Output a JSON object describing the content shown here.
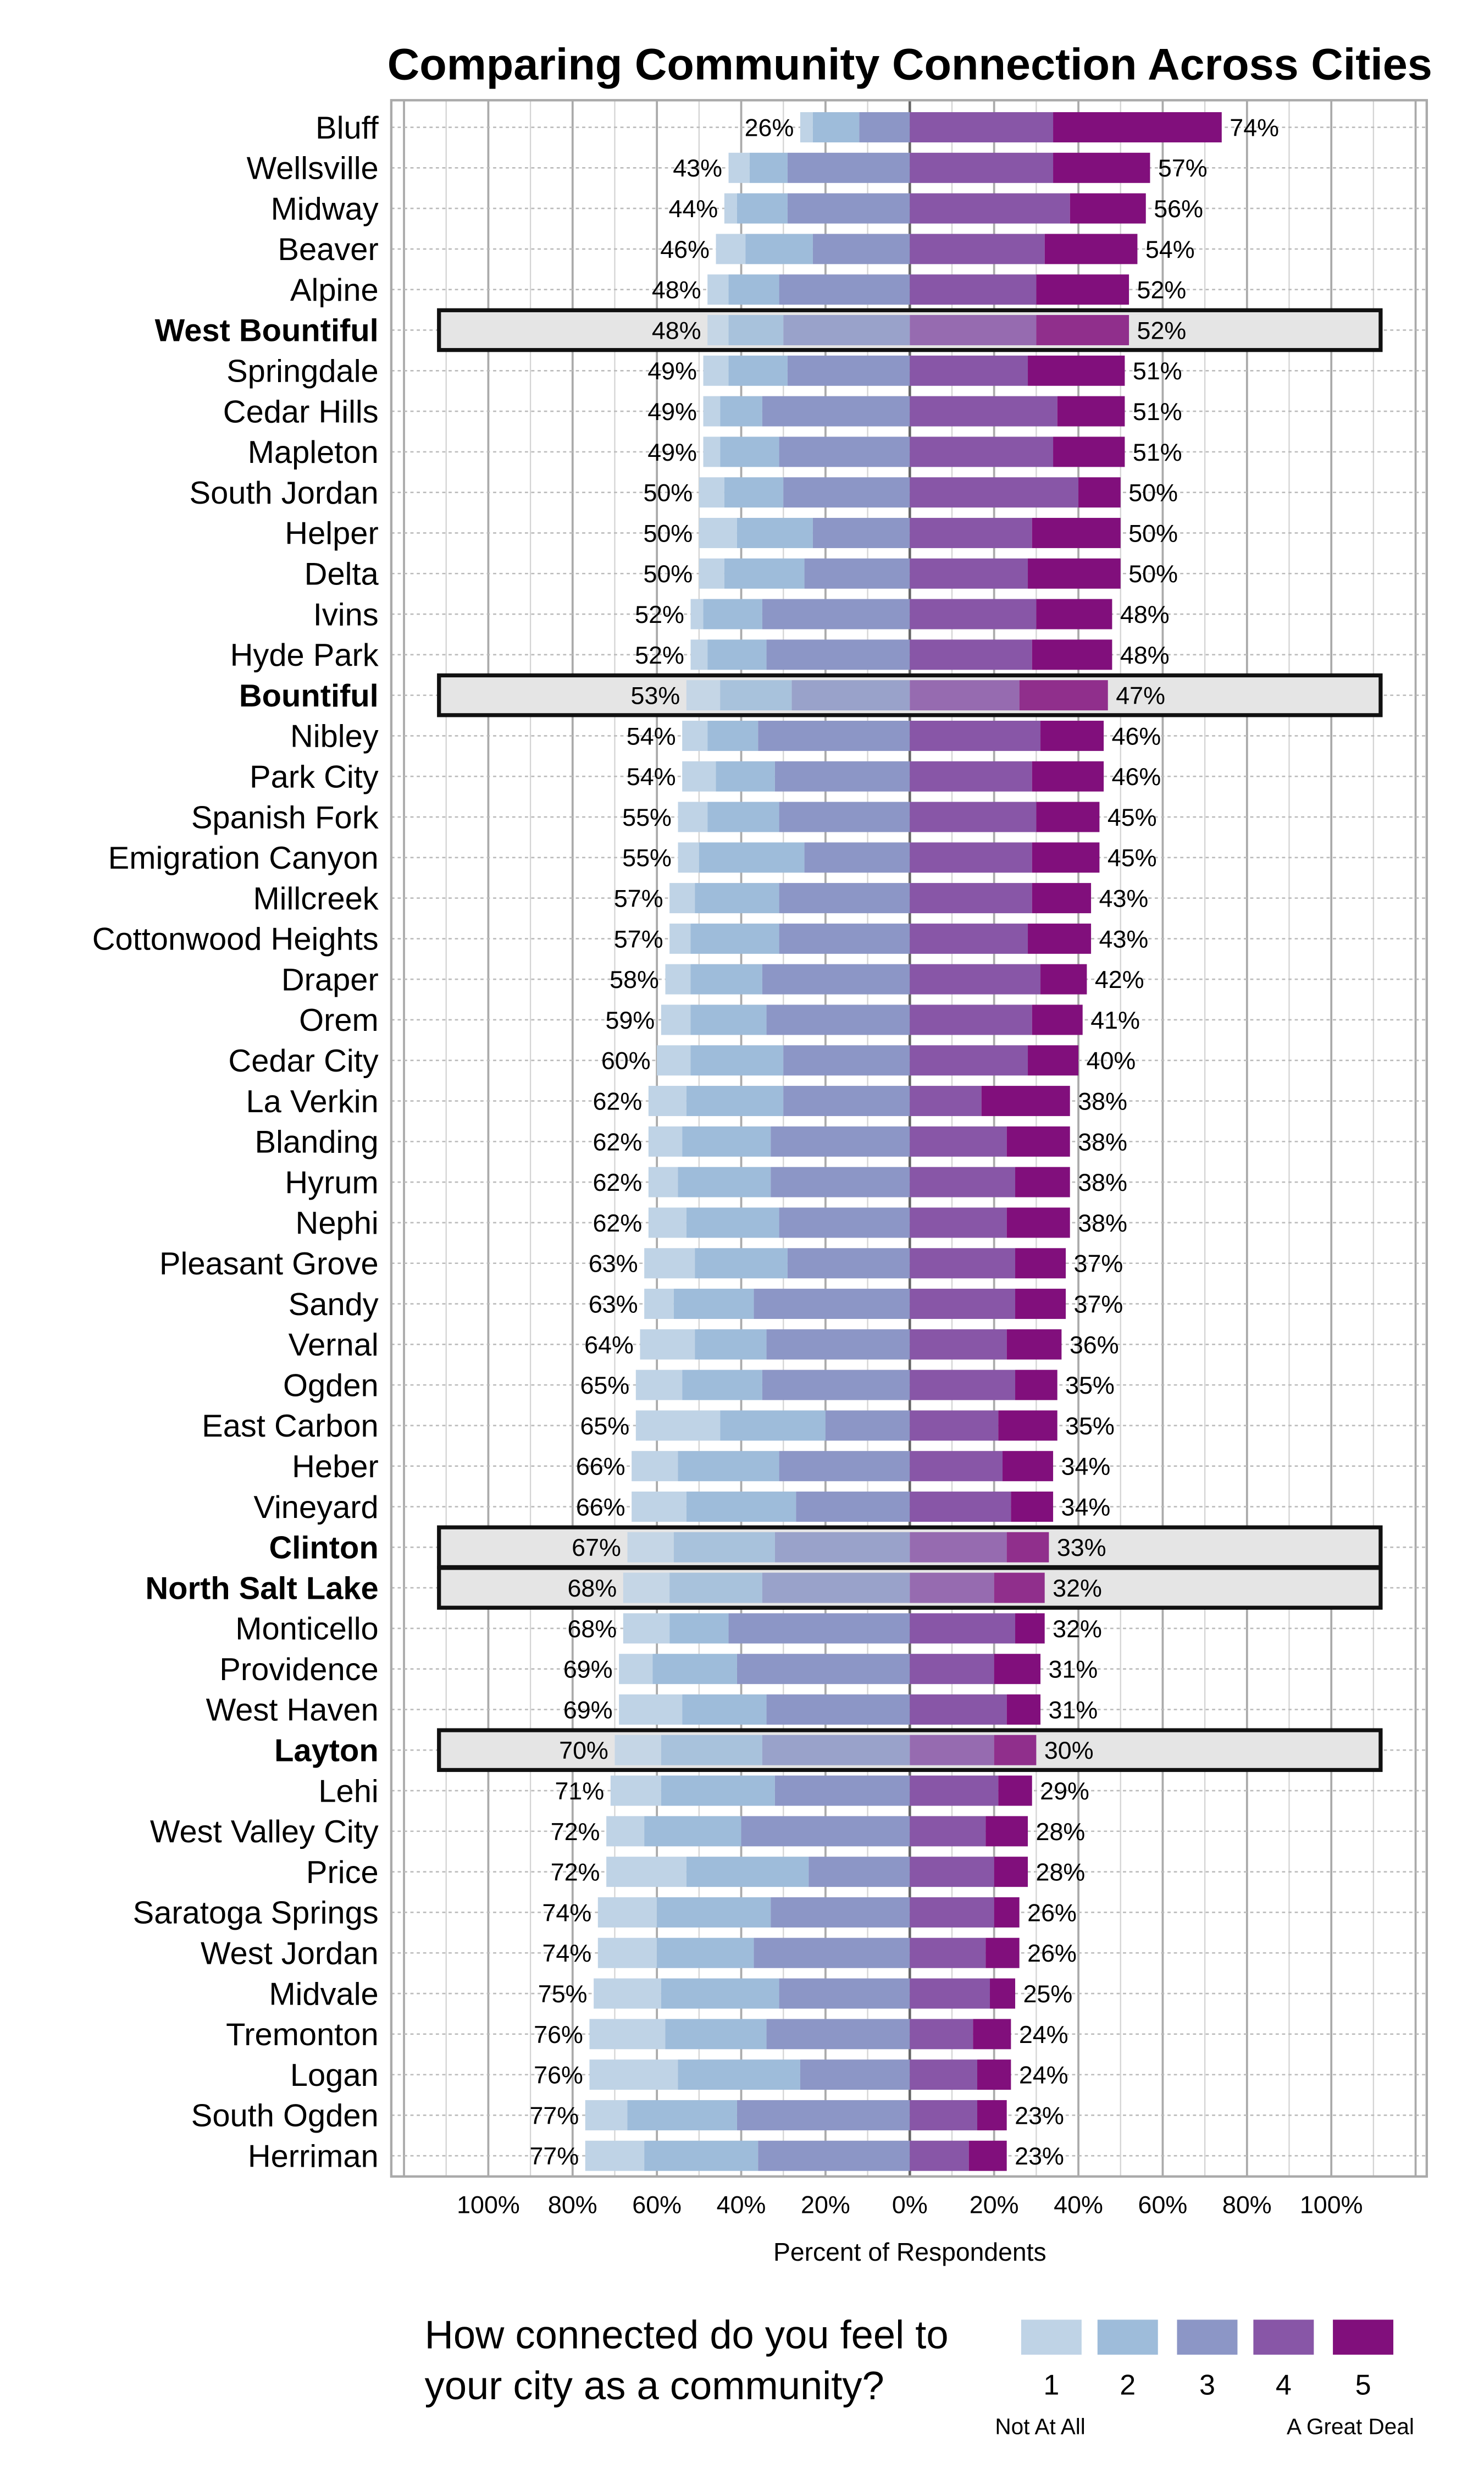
{
  "chart_data": {
    "type": "bar",
    "subtype": "diverging-stacked-horizontal",
    "title": "Comparing Community Connection Across Cities",
    "xlabel": "Percent of Respondents",
    "xlim": [
      -100,
      100
    ],
    "x_tick_labels": [
      "100%",
      "80%",
      "60%",
      "40%",
      "20%",
      "0%",
      "20%",
      "40%",
      "60%",
      "80%",
      "100%"
    ],
    "grid": true,
    "legend": {
      "title_line1": "How connected do you feel to",
      "title_line2": "your city as a community?",
      "placement": "bottom",
      "keys": [
        "1",
        "2",
        "3",
        "4",
        "5"
      ],
      "low_label": "Not At All",
      "high_label": "A Great Deal"
    },
    "colors": [
      "#BFD3E6",
      "#9EBCDA",
      "#8C96C6",
      "#8856A7",
      "#810F7C"
    ],
    "highlight_color": "#E5E5E5",
    "series_names": [
      "1",
      "2",
      "3",
      "4",
      "5"
    ],
    "rows": [
      {
        "city": "Bluff",
        "values": [
          3,
          11,
          12,
          34,
          40
        ],
        "left_label": "26%",
        "right_label": "74%"
      },
      {
        "city": "Wellsville",
        "values": [
          5,
          9,
          29,
          34,
          23
        ],
        "left_label": "43%",
        "right_label": "57%"
      },
      {
        "city": "Midway",
        "values": [
          3,
          12,
          29,
          38,
          18
        ],
        "left_label": "44%",
        "right_label": "56%"
      },
      {
        "city": "Beaver",
        "values": [
          7,
          16,
          23,
          32,
          22
        ],
        "left_label": "46%",
        "right_label": "54%"
      },
      {
        "city": "Alpine",
        "values": [
          5,
          12,
          31,
          30,
          22
        ],
        "left_label": "48%",
        "right_label": "52%"
      },
      {
        "city": "West Bountiful",
        "highlight": true,
        "values": [
          5,
          13,
          30,
          30,
          22
        ],
        "left_label": "48%",
        "right_label": "52%"
      },
      {
        "city": "Springdale",
        "values": [
          6,
          14,
          29,
          28,
          23
        ],
        "left_label": "49%",
        "right_label": "51%"
      },
      {
        "city": "Cedar Hills",
        "values": [
          4,
          10,
          35,
          35,
          16
        ],
        "left_label": "49%",
        "right_label": "51%"
      },
      {
        "city": "Mapleton",
        "values": [
          4,
          14,
          31,
          34,
          17
        ],
        "left_label": "49%",
        "right_label": "51%"
      },
      {
        "city": "South Jordan",
        "values": [
          6,
          14,
          30,
          40,
          10
        ],
        "left_label": "50%",
        "right_label": "50%"
      },
      {
        "city": "Helper",
        "values": [
          9,
          18,
          23,
          29,
          21
        ],
        "left_label": "50%",
        "right_label": "50%"
      },
      {
        "city": "Delta",
        "values": [
          6,
          19,
          25,
          28,
          22
        ],
        "left_label": "50%",
        "right_label": "50%"
      },
      {
        "city": "Ivins",
        "values": [
          3,
          14,
          35,
          30,
          18
        ],
        "left_label": "52%",
        "right_label": "48%"
      },
      {
        "city": "Hyde Park",
        "values": [
          4,
          14,
          34,
          29,
          19
        ],
        "left_label": "52%",
        "right_label": "48%"
      },
      {
        "city": "Bountiful",
        "highlight": true,
        "values": [
          8,
          17,
          28,
          26,
          21
        ],
        "left_label": "53%",
        "right_label": "47%"
      },
      {
        "city": "Nibley",
        "values": [
          6,
          12,
          36,
          31,
          15
        ],
        "left_label": "54%",
        "right_label": "46%"
      },
      {
        "city": "Park City",
        "values": [
          8,
          14,
          32,
          29,
          17
        ],
        "left_label": "54%",
        "right_label": "46%"
      },
      {
        "city": "Spanish Fork",
        "values": [
          7,
          17,
          31,
          30,
          15
        ],
        "left_label": "55%",
        "right_label": "45%"
      },
      {
        "city": "Emigration Canyon",
        "values": [
          5,
          25,
          25,
          29,
          16
        ],
        "left_label": "55%",
        "right_label": "45%"
      },
      {
        "city": "Millcreek",
        "values": [
          6,
          20,
          31,
          29,
          14
        ],
        "left_label": "57%",
        "right_label": "43%"
      },
      {
        "city": "Cottonwood Heights",
        "values": [
          5,
          21,
          31,
          28,
          15
        ],
        "left_label": "57%",
        "right_label": "43%"
      },
      {
        "city": "Draper",
        "values": [
          6,
          17,
          35,
          31,
          11
        ],
        "left_label": "58%",
        "right_label": "42%"
      },
      {
        "city": "Orem",
        "values": [
          7,
          18,
          34,
          29,
          12
        ],
        "left_label": "59%",
        "right_label": "41%"
      },
      {
        "city": "Cedar City",
        "values": [
          8,
          22,
          30,
          28,
          12
        ],
        "left_label": "60%",
        "right_label": "40%"
      },
      {
        "city": "La Verkin",
        "values": [
          9,
          23,
          30,
          17,
          21
        ],
        "left_label": "62%",
        "right_label": "38%"
      },
      {
        "city": "Blanding",
        "values": [
          8,
          21,
          33,
          23,
          15
        ],
        "left_label": "62%",
        "right_label": "38%"
      },
      {
        "city": "Hyrum",
        "values": [
          7,
          22,
          33,
          25,
          13
        ],
        "left_label": "62%",
        "right_label": "38%"
      },
      {
        "city": "Nephi",
        "values": [
          9,
          22,
          31,
          23,
          15
        ],
        "left_label": "62%",
        "right_label": "38%"
      },
      {
        "city": "Pleasant Grove",
        "values": [
          12,
          22,
          29,
          25,
          12
        ],
        "left_label": "63%",
        "right_label": "37%"
      },
      {
        "city": "Sandy",
        "values": [
          7,
          19,
          37,
          25,
          12
        ],
        "left_label": "63%",
        "right_label": "37%"
      },
      {
        "city": "Vernal",
        "values": [
          13,
          17,
          34,
          23,
          13
        ],
        "left_label": "64%",
        "right_label": "36%"
      },
      {
        "city": "Ogden",
        "values": [
          11,
          19,
          35,
          25,
          10
        ],
        "left_label": "65%",
        "right_label": "35%"
      },
      {
        "city": "East Carbon",
        "values": [
          20,
          25,
          20,
          21,
          14
        ],
        "left_label": "65%",
        "right_label": "35%"
      },
      {
        "city": "Heber",
        "values": [
          11,
          24,
          31,
          22,
          12
        ],
        "left_label": "66%",
        "right_label": "34%"
      },
      {
        "city": "Vineyard",
        "values": [
          13,
          26,
          27,
          24,
          10
        ],
        "left_label": "66%",
        "right_label": "34%"
      },
      {
        "city": "Clinton",
        "highlight": true,
        "values": [
          11,
          24,
          32,
          23,
          10
        ],
        "left_label": "67%",
        "right_label": "33%"
      },
      {
        "city": "North Salt Lake",
        "highlight": true,
        "values": [
          11,
          22,
          35,
          20,
          12
        ],
        "left_label": "68%",
        "right_label": "32%"
      },
      {
        "city": "Monticello",
        "values": [
          11,
          14,
          43,
          25,
          7
        ],
        "left_label": "68%",
        "right_label": "32%"
      },
      {
        "city": "Providence",
        "values": [
          8,
          20,
          41,
          20,
          11
        ],
        "left_label": "69%",
        "right_label": "31%"
      },
      {
        "city": "West Haven",
        "values": [
          15,
          20,
          34,
          23,
          8
        ],
        "left_label": "69%",
        "right_label": "31%"
      },
      {
        "city": "Layton",
        "highlight": true,
        "values": [
          11,
          24,
          35,
          20,
          10
        ],
        "left_label": "70%",
        "right_label": "30%"
      },
      {
        "city": "Lehi",
        "values": [
          12,
          27,
          32,
          21,
          8
        ],
        "left_label": "71%",
        "right_label": "29%"
      },
      {
        "city": "West Valley City",
        "values": [
          9,
          23,
          40,
          18,
          10
        ],
        "left_label": "72%",
        "right_label": "28%"
      },
      {
        "city": "Price",
        "values": [
          19,
          29,
          24,
          20,
          8
        ],
        "left_label": "72%",
        "right_label": "28%"
      },
      {
        "city": "Saratoga Springs",
        "values": [
          14,
          27,
          33,
          20,
          6
        ],
        "left_label": "74%",
        "right_label": "26%"
      },
      {
        "city": "West Jordan",
        "values": [
          14,
          23,
          37,
          18,
          8
        ],
        "left_label": "74%",
        "right_label": "26%"
      },
      {
        "city": "Midvale",
        "values": [
          16,
          28,
          31,
          19,
          6
        ],
        "left_label": "75%",
        "right_label": "25%"
      },
      {
        "city": "Tremonton",
        "values": [
          18,
          24,
          34,
          15,
          9
        ],
        "left_label": "76%",
        "right_label": "24%"
      },
      {
        "city": "Logan",
        "values": [
          21,
          29,
          26,
          16,
          8
        ],
        "left_label": "76%",
        "right_label": "24%"
      },
      {
        "city": "South Ogden",
        "values": [
          10,
          26,
          41,
          16,
          7
        ],
        "left_label": "77%",
        "right_label": "23%"
      },
      {
        "city": "Herriman",
        "values": [
          14,
          27,
          36,
          14,
          9
        ],
        "left_label": "77%",
        "right_label": "23%"
      }
    ]
  }
}
